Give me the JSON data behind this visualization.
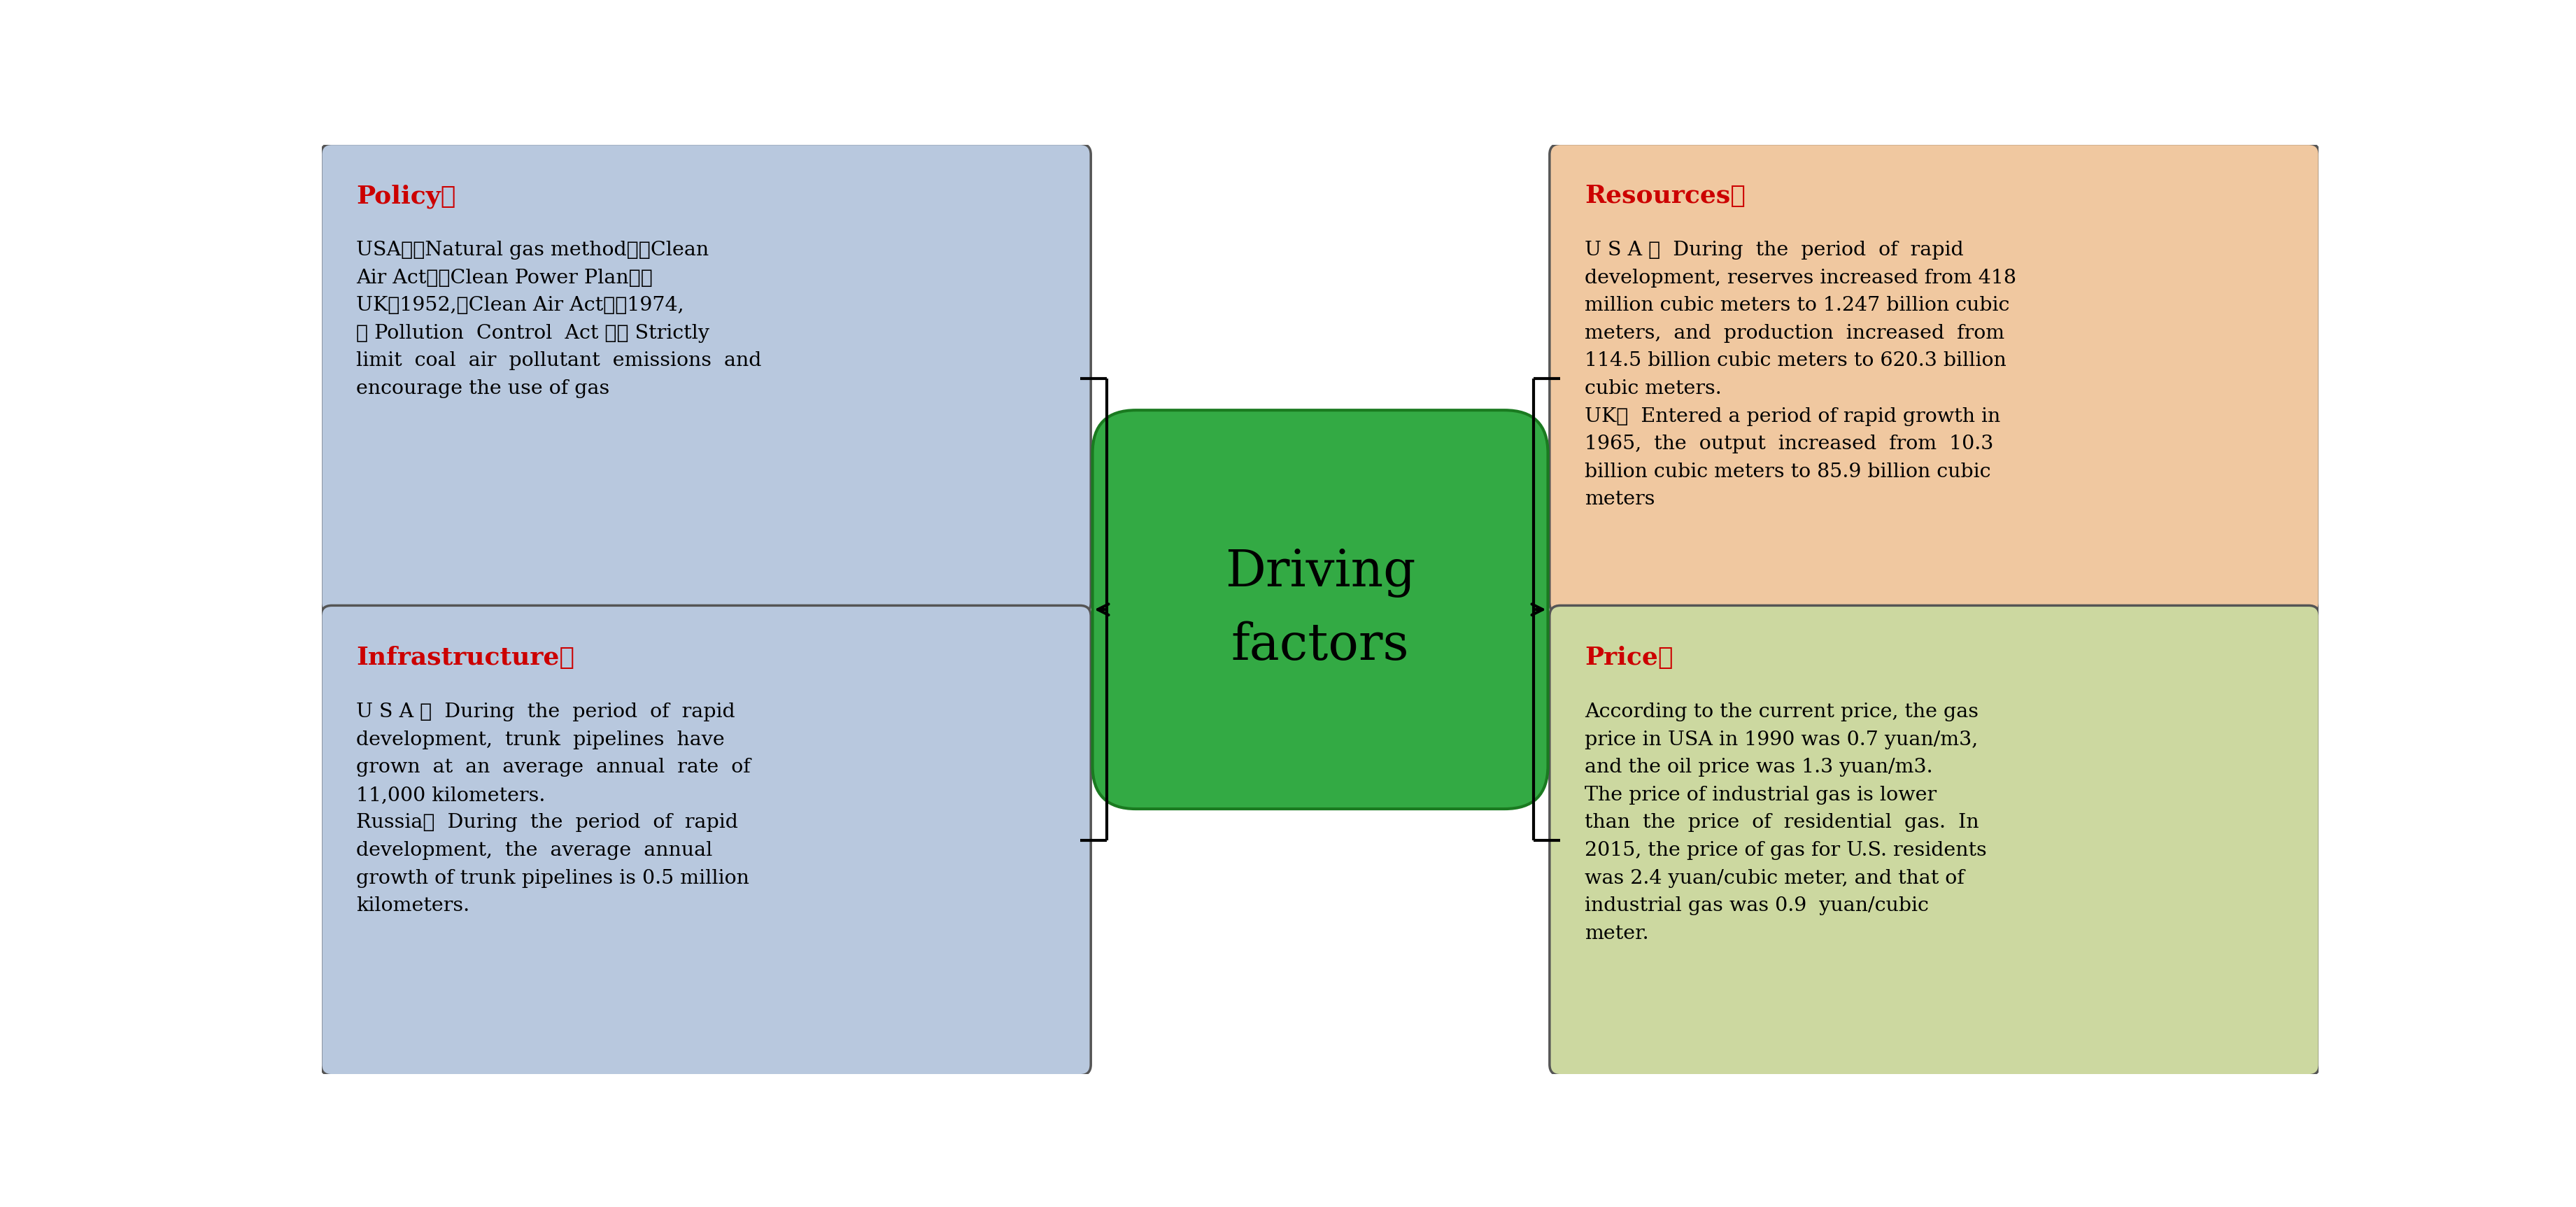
{
  "policy_title": "Policy：",
  "policy_text": "USA：《Natural gas method》《Clean\nAir Act》《Clean Power Plan》；\nUK：1952,《Clean Air Act》；1974,\n《 Pollution  Control  Act 》， Strictly\nlimit  coal  air  pollutant  emissions  and\nencourage the use of gas",
  "infra_title": "Infrastructure：",
  "infra_text": "U S A ：  During  the  period  of  rapid\ndevelopment,  trunk  pipelines  have\ngrown  at  an  average  annual  rate  of\n11,000 kilometers.\nRussia：  During  the  period  of  rapid\ndevelopment,  the  average  annual\ngrowth of trunk pipelines is 0.5 million\nkilometers.",
  "resources_title": "Resources：",
  "resources_text": "U S A ：  During  the  period  of  rapid\ndevelopment, reserves increased from 418\nmillion cubic meters to 1.247 billion cubic\nmeters,  and  production  increased  from\n114.5 billion cubic meters to 620.3 billion\ncubic meters.\nUK：  Entered a period of rapid growth in\n1965,  the  output  increased  from  10.3\nbillion cubic meters to 85.9 billion cubic\nmeters",
  "price_title": "Price：",
  "price_text": "According to the current price, the gas\nprice in USA in 1990 was 0.7 yuan/m3,\nand the oil price was 1.3 yuan/m3.\nThe price of industrial gas is lower\nthan  the  price  of  residential  gas.  In\n2015, the price of gas for U.S. residents\nwas 2.4 yuan/cubic meter, and that of\nindustrial gas was 0.9  yuan/cubic\nmeter.",
  "center_text": "Driving\nfactors",
  "bg_color": "#ffffff",
  "policy_bg": "#b8c8de",
  "infra_bg": "#b8c8de",
  "resources_bg": "#f0c8a0",
  "price_bg": "#ccd8a0",
  "center_bg": "#33aa44",
  "center_edge": "#1a7a20",
  "title_color": "#cc0000",
  "text_color": "#000000",
  "center_text_color": "#000000",
  "box_edge_color": "#555555",
  "connector_color": "#000000"
}
